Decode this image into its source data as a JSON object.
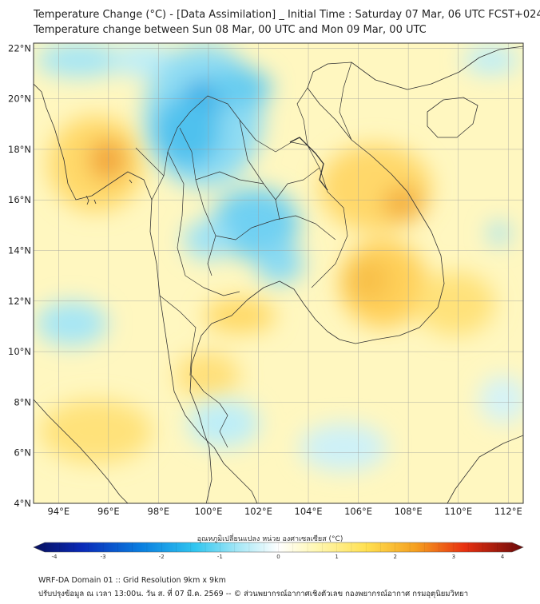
{
  "title": {
    "line1": "Temperature Change (°C) - [Data Assimilation] _ Initial Time : Saturday 07 Mar, 06 UTC FCST+024",
    "line2": "Temperature change between Sun 08 Mar, 00 UTC and Mon 09 Mar, 00 UTC"
  },
  "axes": {
    "lon_labels": [
      "94°E",
      "96°E",
      "98°E",
      "100°E",
      "102°E",
      "104°E",
      "106°E",
      "108°E",
      "110°E",
      "112°E"
    ],
    "lat_labels": [
      "22°N",
      "20°N",
      "18°N",
      "16°N",
      "14°N",
      "12°N",
      "10°N",
      "8°N",
      "6°N",
      "4°N"
    ],
    "lon_range": [
      93.0,
      112.6
    ],
    "lat_range": [
      4.0,
      22.2
    ]
  },
  "colorbar": {
    "title": "อุณหภูมิเปลี่ยนแปลง หน่วย องศาเซลเซียส (°C)",
    "tick_labels": [
      "-4",
      "-3",
      "-2",
      "-1",
      "0",
      "1",
      "2",
      "3",
      "4"
    ],
    "min": -4,
    "max": 4
  },
  "footer": {
    "line1": "WRF-DA Domain 01 :: Grid Resolution 9km x 9km",
    "line2": "ปรับปรุงข้อมูล ณ เวลา 13:00น. วัน ส. ที่ 07 มี.ค. 2569 -- © ส่วนพยากรณ์อากาศเชิงตัวเลข กองพยากรณ์อากาศ กรมอุตุนิยมวิทยา"
  },
  "colors": {
    "background_field": "#fff9c4",
    "cold_strong": "#0a9de3",
    "cold_light": "#9fe3f5",
    "warm_strong": "#f0a020",
    "warm_light": "#ffe680",
    "coastline": "#333333"
  }
}
